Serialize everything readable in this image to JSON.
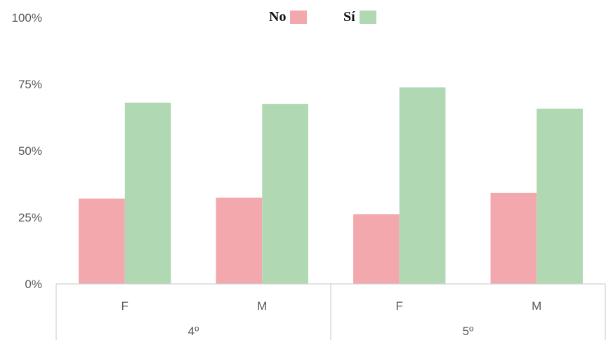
{
  "chart_data": {
    "type": "bar",
    "groups": [
      {
        "label": "4º",
        "categories": [
          "F",
          "M"
        ]
      },
      {
        "label": "5º",
        "categories": [
          "F",
          "M"
        ]
      }
    ],
    "series": [
      {
        "name": "No",
        "color": "#f2a8ad",
        "values": [
          32,
          32.4,
          26.2,
          34.2
        ]
      },
      {
        "name": "Sí",
        "color": "#b0d9b3",
        "values": [
          68,
          67.6,
          73.8,
          65.8
        ]
      }
    ],
    "yticks": [
      "0%",
      "25%",
      "50%",
      "75%",
      "100%"
    ],
    "ylim": [
      0,
      100
    ],
    "legend_position": "top-center",
    "grid": false
  }
}
